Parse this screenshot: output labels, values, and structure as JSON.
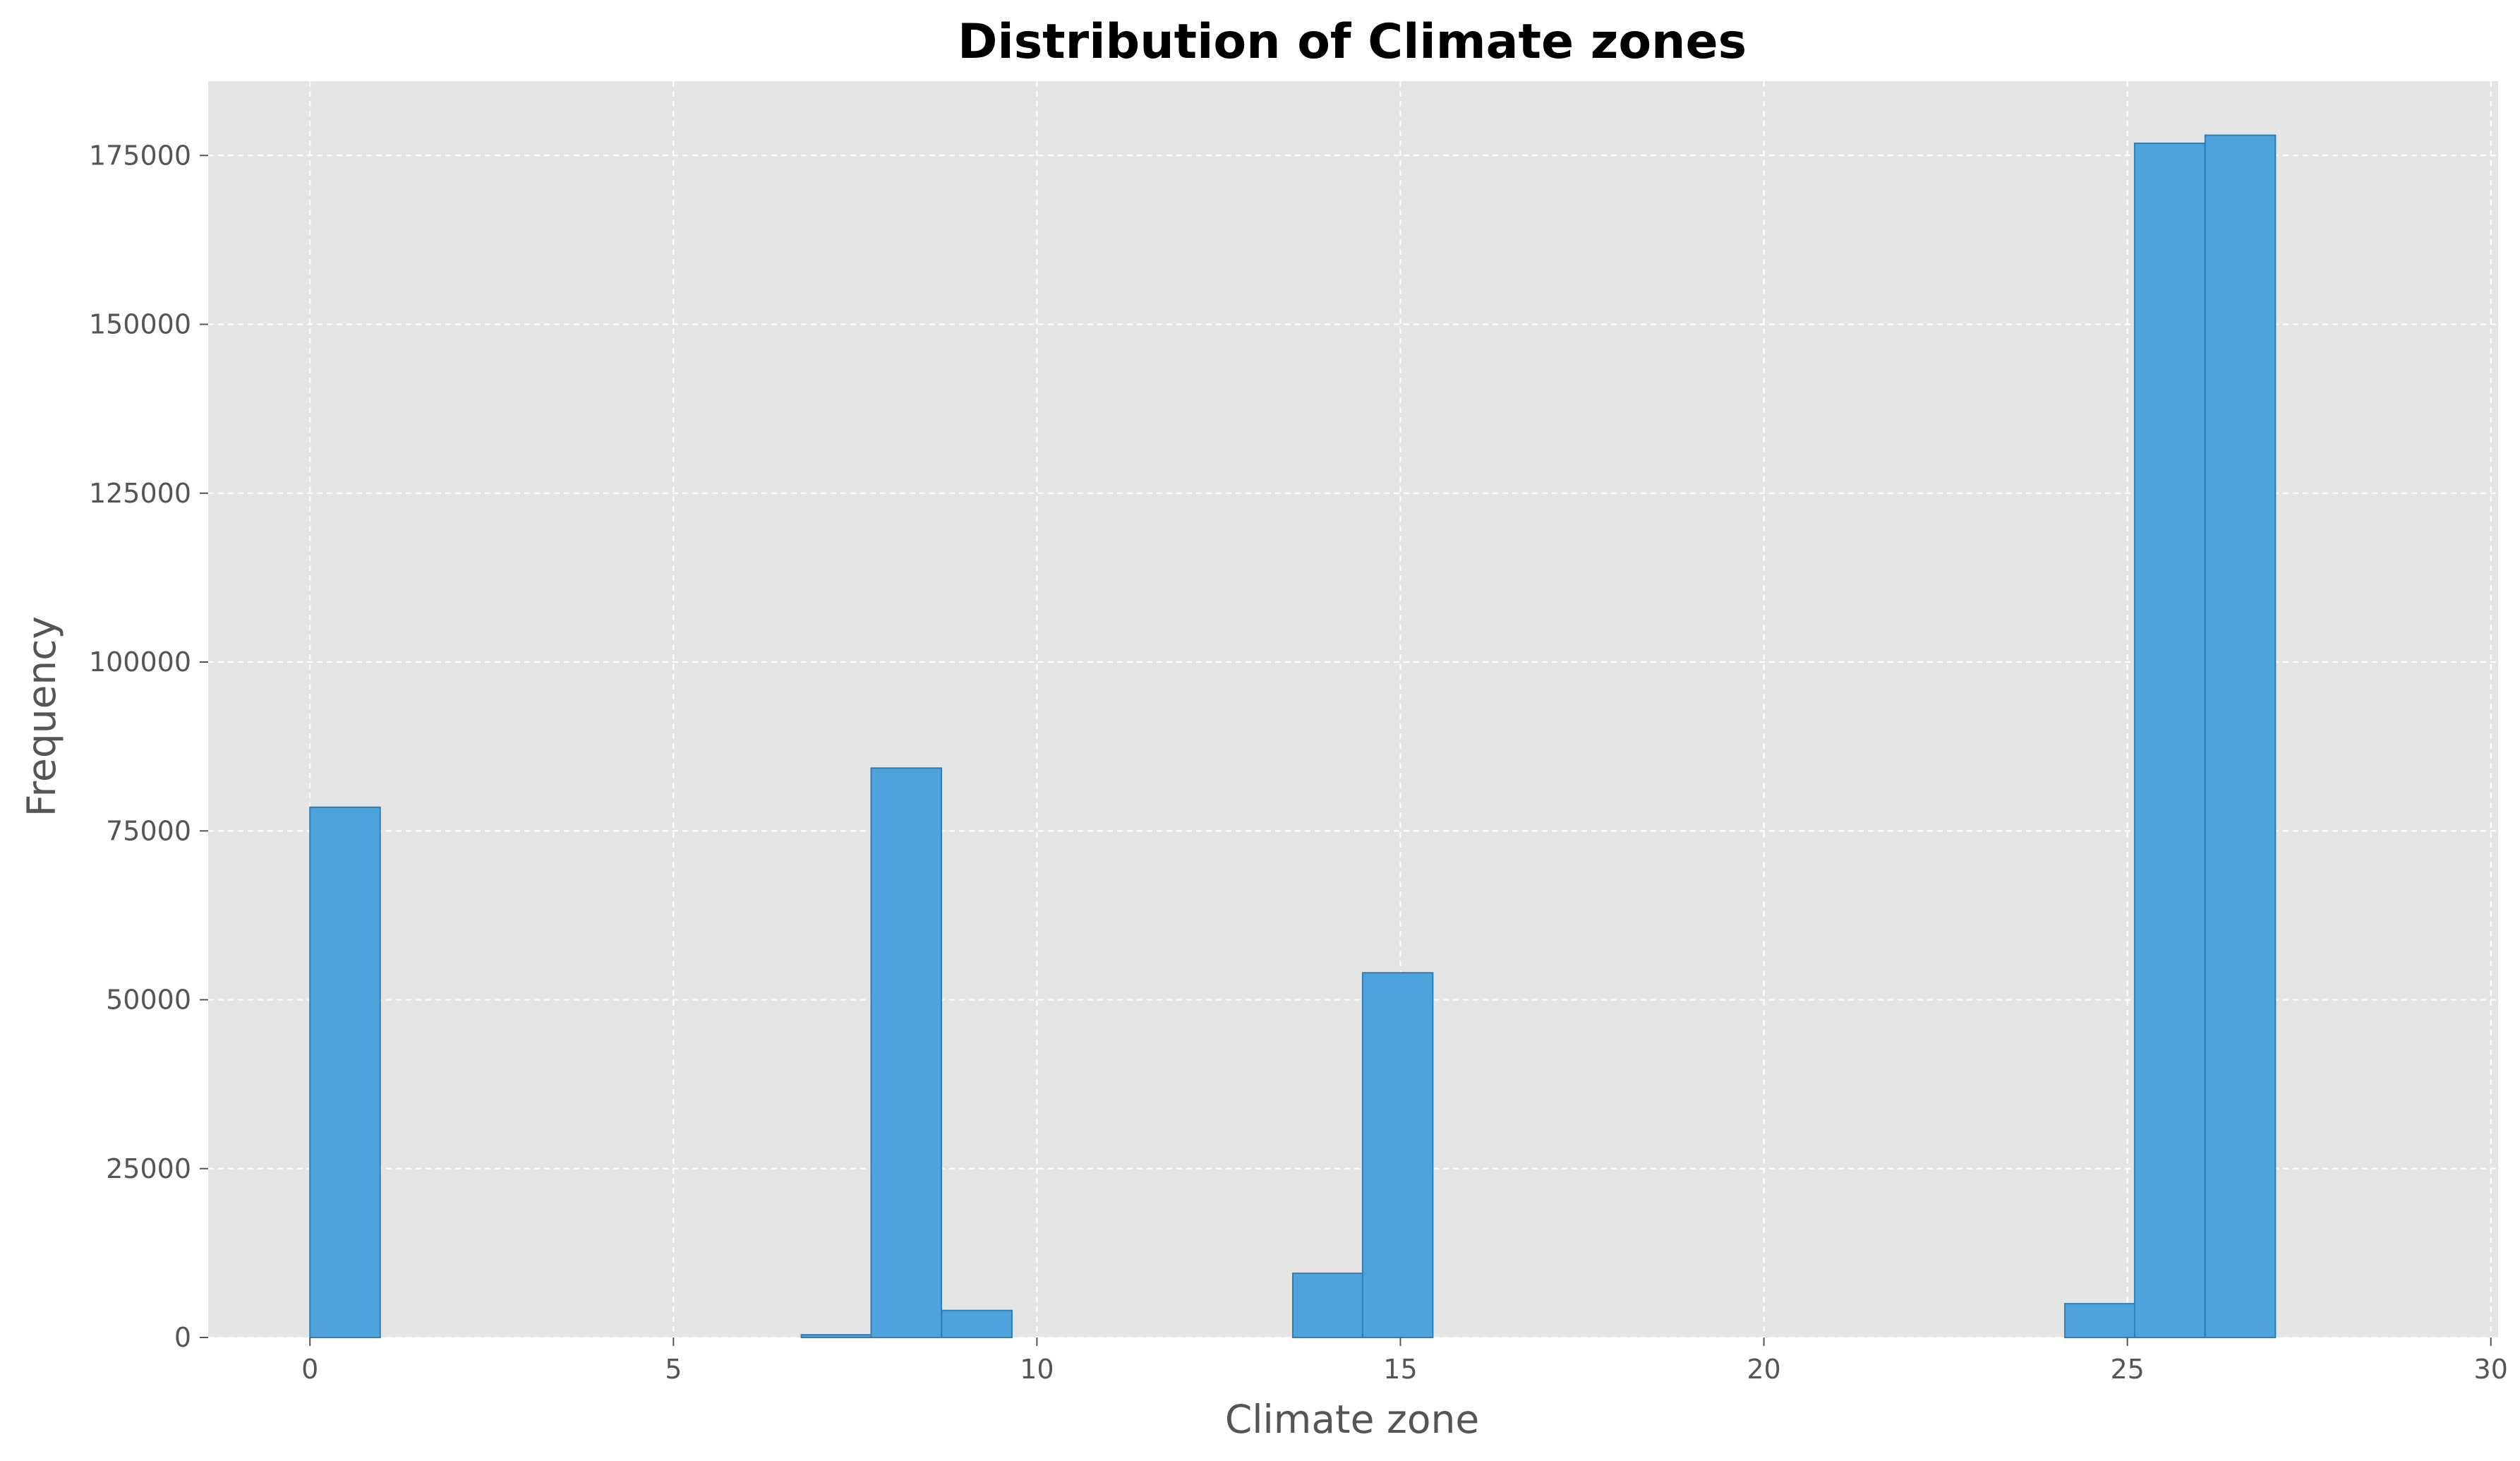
{
  "chart_data": {
    "type": "bar",
    "title": "Distribution of Climate zones",
    "xlabel": "Climate zone",
    "ylabel": "Frequency",
    "xlim": [
      -1.4,
      30.1
    ],
    "ylim": [
      0,
      186000
    ],
    "xticks": [
      0,
      5,
      10,
      15,
      20,
      25,
      30
    ],
    "yticks": [
      0,
      25000,
      50000,
      75000,
      100000,
      125000,
      150000,
      175000
    ],
    "grid": true,
    "bin_width": 0.966,
    "bins": [
      {
        "x0": 0.0,
        "value": 78500
      },
      {
        "x0": 6.76,
        "value": 400
      },
      {
        "x0": 7.72,
        "value": 84300
      },
      {
        "x0": 8.69,
        "value": 4000
      },
      {
        "x0": 13.52,
        "value": 9500
      },
      {
        "x0": 14.48,
        "value": 54000
      },
      {
        "x0": 24.14,
        "value": 5000
      },
      {
        "x0": 25.1,
        "value": 176800
      },
      {
        "x0": 26.07,
        "value": 178000
      }
    ],
    "colors": {
      "bar_fill": "#4fa3dc",
      "bar_edge": "#2f7fb5",
      "plot_background": "#e5e5e5",
      "grid": "#ffffff"
    }
  }
}
